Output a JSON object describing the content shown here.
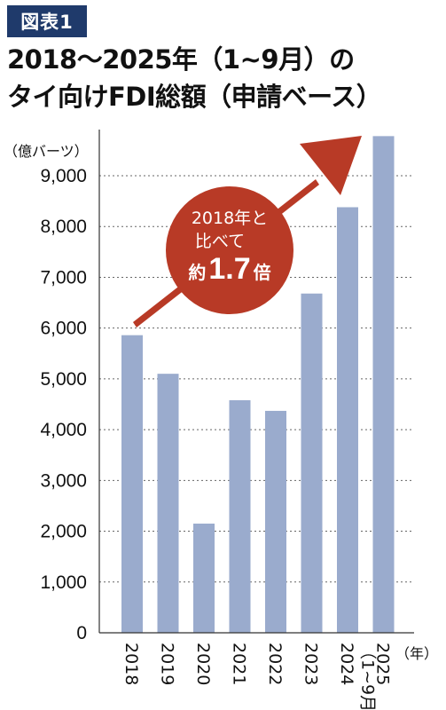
{
  "badge": "図表1",
  "title": {
    "line1": "2018〜2025年（1~9月）の",
    "line2": "タイ向けFDI総額（申請ベース）"
  },
  "chart_data": {
    "type": "bar",
    "categories": [
      "2018",
      "2019",
      "2020",
      "2021",
      "2022",
      "2023",
      "2024",
      "2025"
    ],
    "category_sublabels": [
      "",
      "",
      "",
      "",
      "",
      "",
      "",
      "（1~9月）"
    ],
    "values": [
      5860,
      5100,
      2150,
      4580,
      4370,
      6680,
      8380,
      9780
    ],
    "ylabel": "（億バーツ）",
    "xlabel": "（年）",
    "ylim": [
      0,
      10000
    ],
    "yticks": [
      0,
      1000,
      2000,
      3000,
      4000,
      5000,
      6000,
      7000,
      8000,
      9000
    ],
    "ytick_labels": [
      "0",
      "1,000",
      "2,000",
      "3,000",
      "4,000",
      "5,000",
      "6,000",
      "7,000",
      "8,000",
      "9,000"
    ],
    "grid": true,
    "bar_color": "#9aabcd",
    "annotation": {
      "line1": "2018年と",
      "line2": "比べて",
      "prefix": "約",
      "value": "1.7",
      "suffix": "倍"
    },
    "accent_color": "#b83a26"
  }
}
